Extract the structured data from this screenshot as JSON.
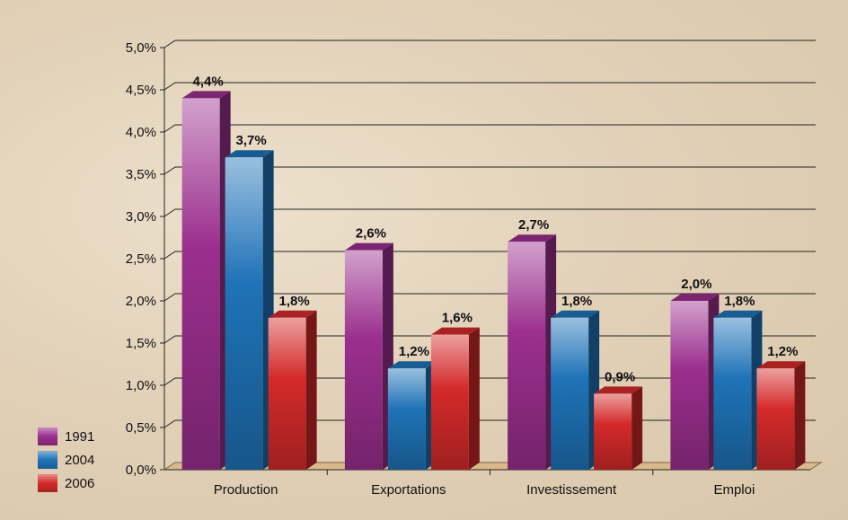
{
  "chart_data": {
    "type": "bar",
    "categories": [
      "Production",
      "Exportations",
      "Investissement",
      "Emploi"
    ],
    "series": [
      {
        "name": "1991",
        "color": "#9b2f8e",
        "values": [
          4.4,
          2.6,
          2.7,
          2.0
        ],
        "labels": [
          "4,4%",
          "2,6%",
          "2,7%",
          "2,0%"
        ]
      },
      {
        "name": "2004",
        "color": "#1f73b7",
        "values": [
          3.7,
          1.2,
          1.8,
          1.8
        ],
        "labels": [
          "3,7%",
          "1,2%",
          "1,8%",
          "1,8%"
        ]
      },
      {
        "name": "2006",
        "color": "#d42a2a",
        "values": [
          1.8,
          1.6,
          0.9,
          1.2
        ],
        "labels": [
          "1,8%",
          "1,6%",
          "0,9%",
          "1,2%"
        ]
      }
    ],
    "ylim": [
      0,
      5
    ],
    "yticks": [
      0,
      0.5,
      1,
      1.5,
      2,
      2.5,
      3,
      3.5,
      4,
      4.5,
      5
    ],
    "ytick_labels": [
      "0,0%",
      "0,5%",
      "1,0%",
      "1,5%",
      "2,0%",
      "2,5%",
      "3,0%",
      "3,5%",
      "4,0%",
      "4,5%",
      "5,0%"
    ],
    "title": "",
    "xlabel": "",
    "ylabel": "",
    "grid": true,
    "legend_position": "bottom-left",
    "style": "3d-bars"
  }
}
